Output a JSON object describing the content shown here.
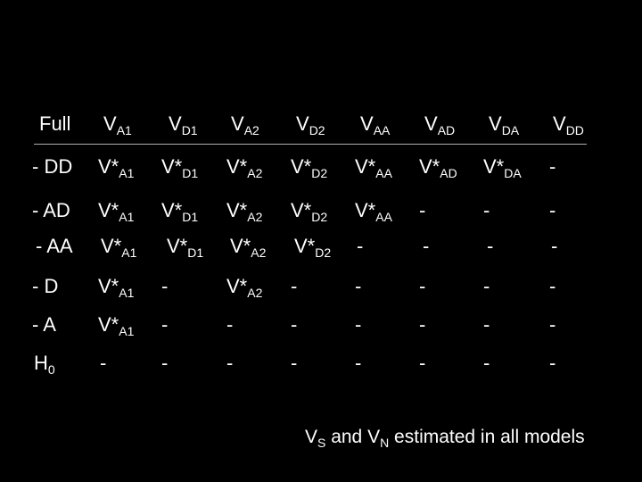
{
  "header": [
    {
      "main": "Full",
      "sub": ""
    },
    {
      "main": "V",
      "sub": "A1"
    },
    {
      "main": "V",
      "sub": "D1"
    },
    {
      "main": "V",
      "sub": "A2"
    },
    {
      "main": "V",
      "sub": "D2"
    },
    {
      "main": "V",
      "sub": "AA"
    },
    {
      "main": "V",
      "sub": "AD"
    },
    {
      "main": "V",
      "sub": "DA"
    },
    {
      "main": "V",
      "sub": "DD"
    }
  ],
  "rows": [
    [
      {
        "main": "- DD",
        "sub": ""
      },
      {
        "main": "V*",
        "sub": "A1"
      },
      {
        "main": "V*",
        "sub": "D1"
      },
      {
        "main": "V*",
        "sub": "A2"
      },
      {
        "main": "V*",
        "sub": "D2"
      },
      {
        "main": "V*",
        "sub": "AA"
      },
      {
        "main": "V*",
        "sub": "AD"
      },
      {
        "main": "V*",
        "sub": "DA"
      },
      {
        "main": "-",
        "sub": ""
      }
    ],
    [
      {
        "main": "- AD",
        "sub": ""
      },
      {
        "main": "V*",
        "sub": "A1"
      },
      {
        "main": "V*",
        "sub": "D1"
      },
      {
        "main": "V*",
        "sub": "A2"
      },
      {
        "main": "V*",
        "sub": "D2"
      },
      {
        "main": "V*",
        "sub": "AA"
      },
      {
        "main": "-",
        "sub": ""
      },
      {
        "main": "-",
        "sub": ""
      },
      {
        "main": "-",
        "sub": ""
      }
    ],
    [
      {
        "main": "- AA",
        "sub": ""
      },
      {
        "main": "V*",
        "sub": "A1"
      },
      {
        "main": "V*",
        "sub": "D1"
      },
      {
        "main": "V*",
        "sub": "A2"
      },
      {
        "main": "V*",
        "sub": "D2"
      },
      {
        "main": "-",
        "sub": ""
      },
      {
        "main": "-",
        "sub": ""
      },
      {
        "main": "-",
        "sub": ""
      },
      {
        "main": "-",
        "sub": ""
      }
    ],
    [
      {
        "main": "- D",
        "sub": ""
      },
      {
        "main": "V*",
        "sub": "A1"
      },
      {
        "main": "-",
        "sub": ""
      },
      {
        "main": "V*",
        "sub": "A2"
      },
      {
        "main": "-",
        "sub": ""
      },
      {
        "main": "-",
        "sub": ""
      },
      {
        "main": "-",
        "sub": ""
      },
      {
        "main": "-",
        "sub": ""
      },
      {
        "main": "-",
        "sub": ""
      }
    ],
    [
      {
        "main": "- A",
        "sub": ""
      },
      {
        "main": "V*",
        "sub": "A1"
      },
      {
        "main": "-",
        "sub": ""
      },
      {
        "main": "-",
        "sub": ""
      },
      {
        "main": "-",
        "sub": ""
      },
      {
        "main": "-",
        "sub": ""
      },
      {
        "main": "-",
        "sub": ""
      },
      {
        "main": "-",
        "sub": ""
      },
      {
        "main": "-",
        "sub": ""
      }
    ],
    [
      {
        "main": "H",
        "sub": "0"
      },
      {
        "main": "-",
        "sub": ""
      },
      {
        "main": "-",
        "sub": ""
      },
      {
        "main": "-",
        "sub": ""
      },
      {
        "main": "-",
        "sub": ""
      },
      {
        "main": "-",
        "sub": ""
      },
      {
        "main": "-",
        "sub": ""
      },
      {
        "main": "-",
        "sub": ""
      },
      {
        "main": "-",
        "sub": ""
      }
    ]
  ],
  "footer": {
    "v1": "V",
    "s1": "S",
    "and": " and ",
    "v2": "V",
    "s2": "N",
    "rest": " estimated in all models"
  }
}
